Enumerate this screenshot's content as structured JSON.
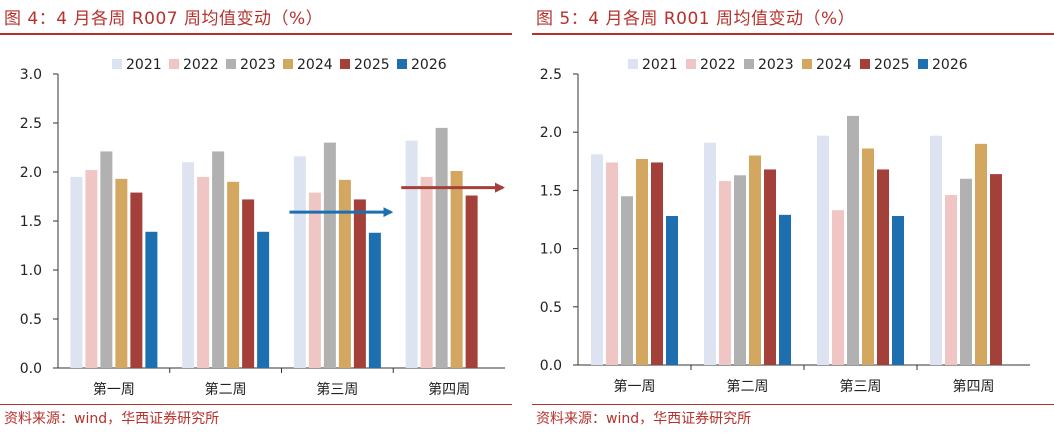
{
  "source_text": "资料来源：wind，华西证券研究所",
  "chart_data": [
    {
      "type": "bar",
      "figure_title": "图 4：4 月各周 R007 周均值变动（%）",
      "categories": [
        "第一周",
        "第二周",
        "第三周",
        "第四周"
      ],
      "ylim": [
        0,
        3.0
      ],
      "yticks": [
        "0.0",
        "0.5",
        "1.0",
        "1.5",
        "2.0",
        "2.5",
        "3.0"
      ],
      "legend_position": "top",
      "grid": false,
      "series": [
        {
          "name": "2021",
          "color": "#dde3f1",
          "values": [
            1.95,
            2.1,
            2.16,
            2.32
          ]
        },
        {
          "name": "2022",
          "color": "#efc6c3",
          "values": [
            2.02,
            1.95,
            1.79,
            1.95
          ]
        },
        {
          "name": "2023",
          "color": "#b1b1b1",
          "values": [
            2.21,
            2.21,
            2.3,
            2.45
          ]
        },
        {
          "name": "2024",
          "color": "#d3a760",
          "values": [
            1.93,
            1.9,
            1.92,
            2.01
          ]
        },
        {
          "name": "2025",
          "color": "#a4403a",
          "values": [
            1.79,
            1.72,
            1.72,
            1.76
          ]
        },
        {
          "name": "2026",
          "color": "#1e6fb0",
          "values": [
            1.39,
            1.39,
            1.38,
            null
          ]
        }
      ],
      "annotations": [
        {
          "type": "arrow",
          "color": "#1e6fb0",
          "category_index": 2,
          "y": 1.59
        },
        {
          "type": "arrow",
          "color": "#a4403a",
          "category_index": 3,
          "y": 1.84
        }
      ]
    },
    {
      "type": "bar",
      "figure_title": "图 5：4 月各周 R001 周均值变动（%）",
      "categories": [
        "第一周",
        "第二周",
        "第三周",
        "第四周"
      ],
      "ylim": [
        0,
        2.5
      ],
      "yticks": [
        "0.0",
        "0.5",
        "1.0",
        "1.5",
        "2.0",
        "2.5"
      ],
      "legend_position": "top",
      "grid": false,
      "series": [
        {
          "name": "2021",
          "color": "#dde3f1",
          "values": [
            1.81,
            1.91,
            1.97,
            1.97
          ]
        },
        {
          "name": "2022",
          "color": "#efc6c3",
          "values": [
            1.74,
            1.58,
            1.33,
            1.46
          ]
        },
        {
          "name": "2023",
          "color": "#b1b1b1",
          "values": [
            1.45,
            1.63,
            2.14,
            1.6
          ]
        },
        {
          "name": "2024",
          "color": "#d3a760",
          "values": [
            1.77,
            1.8,
            1.86,
            1.9
          ]
        },
        {
          "name": "2025",
          "color": "#a4403a",
          "values": [
            1.74,
            1.68,
            1.68,
            1.64
          ]
        },
        {
          "name": "2026",
          "color": "#1e6fb0",
          "values": [
            1.28,
            1.29,
            1.28,
            null
          ]
        }
      ],
      "annotations": []
    }
  ]
}
